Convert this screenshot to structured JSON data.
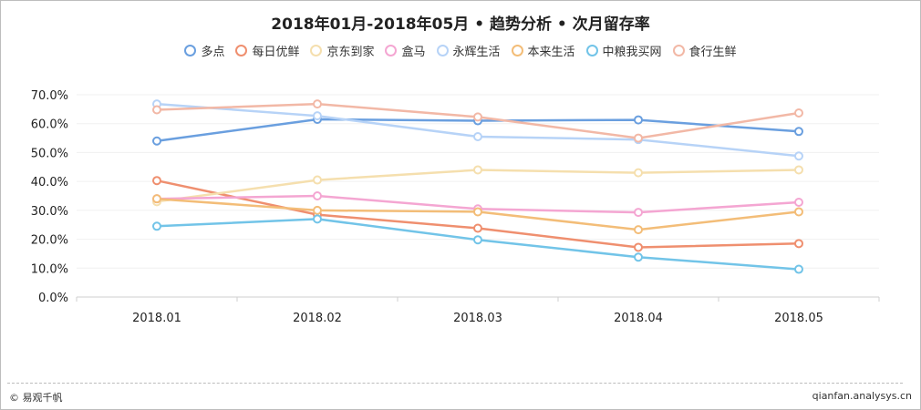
{
  "chart_data": {
    "type": "line",
    "title": "2018年01月-2018年05月 • 趋势分析 • 次月留存率",
    "categories": [
      "2018.01",
      "2018.02",
      "2018.03",
      "2018.04",
      "2018.05"
    ],
    "ylim": [
      0,
      70
    ],
    "yticks": [
      "0.0%",
      "10.0%",
      "20.0%",
      "30.0%",
      "40.0%",
      "50.0%",
      "60.0%",
      "70.0%"
    ],
    "ytick_values": [
      0,
      10,
      20,
      30,
      40,
      50,
      60,
      70
    ],
    "grid": true,
    "legend_position": "top-center",
    "series": [
      {
        "name": "多点",
        "color": "#6a9fdf",
        "values": [
          54.0,
          61.5,
          61.0,
          61.3,
          57.3
        ]
      },
      {
        "name": "每日优鲜",
        "color": "#ef8f6f",
        "values": [
          40.3,
          28.5,
          23.8,
          17.2,
          18.5
        ]
      },
      {
        "name": "京东到家",
        "color": "#f5dfae",
        "values": [
          33.0,
          40.5,
          44.0,
          43.0,
          44.0
        ]
      },
      {
        "name": "盒马",
        "color": "#f4a6d2",
        "values": [
          34.0,
          35.0,
          30.5,
          29.3,
          32.8
        ]
      },
      {
        "name": "永辉生活",
        "color": "#b7d3f7",
        "values": [
          66.8,
          62.7,
          55.5,
          54.5,
          48.8
        ]
      },
      {
        "name": "本来生活",
        "color": "#f3bd78",
        "values": [
          34.0,
          30.0,
          29.5,
          23.3,
          29.5
        ]
      },
      {
        "name": "中粮我买网",
        "color": "#72c4e8",
        "values": [
          24.5,
          27.0,
          19.8,
          13.8,
          9.6
        ]
      },
      {
        "name": "食行生鲜",
        "color": "#f2b8a6",
        "values": [
          64.8,
          66.8,
          62.3,
          55.0,
          63.7
        ]
      }
    ]
  },
  "footer": {
    "copyright": "© 易观千帆",
    "source": "qianfan.analysys.cn"
  }
}
